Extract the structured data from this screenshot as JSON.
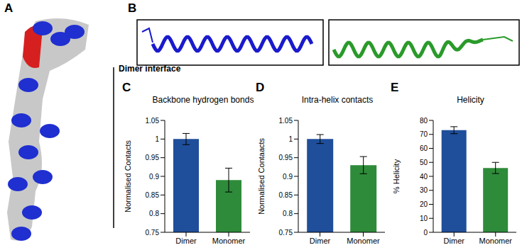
{
  "panels": {
    "A": {
      "label": "A",
      "annotation": "Dimer interface"
    },
    "B": {
      "label": "B"
    }
  },
  "chart_data": [
    {
      "panel": "C",
      "type": "bar",
      "title": "Backbone hydrogen bonds",
      "y_label": "Normalised Contacts",
      "categories": [
        "Dimer",
        "Monomer"
      ],
      "values": [
        1.0,
        0.89
      ],
      "errors": [
        0.015,
        0.032
      ],
      "colors": [
        "#1f4e9a",
        "#2e8b3a"
      ],
      "ylim": [
        0.75,
        1.05
      ],
      "yticks": [
        0.75,
        0.8,
        0.85,
        0.9,
        0.95,
        1,
        1.05
      ]
    },
    {
      "panel": "D",
      "type": "bar",
      "title": "Intra-helix contacts",
      "y_label": "Normalised Contaacts",
      "categories": [
        "Dimer",
        "Monomer"
      ],
      "values": [
        1.0,
        0.93
      ],
      "errors": [
        0.012,
        0.023
      ],
      "colors": [
        "#1f4e9a",
        "#2e8b3a"
      ],
      "ylim": [
        0.75,
        1.05
      ],
      "yticks": [
        0.75,
        0.8,
        0.85,
        0.9,
        0.95,
        1,
        1.05
      ]
    },
    {
      "panel": "E",
      "type": "bar",
      "title": "Helicity",
      "y_label": "% Helicity",
      "categories": [
        "Dimer",
        "Monomer"
      ],
      "values": [
        73,
        46
      ],
      "errors": [
        2.5,
        4
      ],
      "colors": [
        "#1f4e9a",
        "#2e8b3a"
      ],
      "ylim": [
        0,
        80
      ],
      "yticks": [
        0,
        10,
        20,
        30,
        40,
        50,
        60,
        70,
        80
      ]
    }
  ]
}
